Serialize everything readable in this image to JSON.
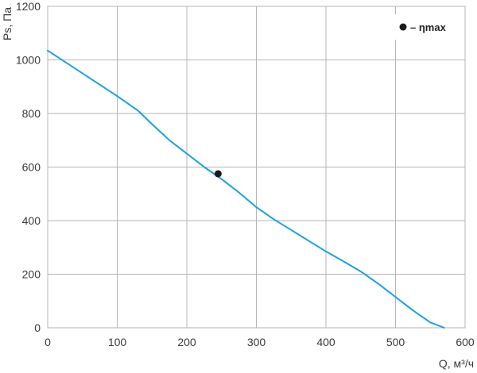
{
  "chart_data": {
    "type": "line",
    "xlabel": "Q, м³/ч",
    "ylabel": "Ps, Па",
    "xlim": [
      0,
      600
    ],
    "ylim": [
      0,
      1200
    ],
    "xticks": [
      "0",
      "100",
      "200",
      "300",
      "400",
      "500",
      "600"
    ],
    "yticks": [
      "0",
      "200",
      "400",
      "600",
      "800",
      "1000",
      "1200"
    ],
    "grid": true,
    "series": [
      {
        "x": [
          0,
          50,
          100,
          130,
          150,
          175,
          200,
          225,
          250,
          275,
          300,
          325,
          350,
          375,
          400,
          425,
          450,
          475,
          500,
          525,
          550,
          570
        ],
        "y": [
          1035,
          950,
          865,
          810,
          760,
          700,
          650,
          600,
          555,
          505,
          450,
          405,
          365,
          325,
          285,
          248,
          210,
          165,
          115,
          65,
          20,
          0
        ],
        "color": "#1aa3e0"
      }
    ],
    "marker": {
      "x": 245,
      "y": 575,
      "color": "#1a1a1a"
    },
    "legend": {
      "position": "top-right",
      "label": "– ηmax"
    }
  }
}
